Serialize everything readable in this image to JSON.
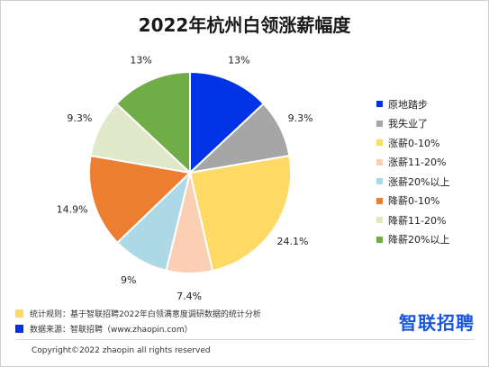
{
  "chart_data": {
    "type": "pie",
    "title": "2022年杭州白领涨薪幅度",
    "categories": [
      "原地踏步",
      "我失业了",
      "涨薪0-10%",
      "涨薪11-20%",
      "涨薪20%以上",
      "降薪0-10%",
      "降薪11-20%",
      "降薪20%以上"
    ],
    "values": [
      13,
      9.3,
      24.1,
      7.4,
      9,
      14.9,
      9.3,
      13
    ],
    "value_labels": [
      "13%",
      "9.3%",
      "24.1%",
      "7.4%",
      "9%",
      "14.9%",
      "9.3%",
      "13%"
    ],
    "colors": [
      "#0033e6",
      "#a6a6a6",
      "#ffd966",
      "#fbcfb4",
      "#add8e6",
      "#ed7d31",
      "#dfe8c8",
      "#70ad47"
    ],
    "legend_position": "right"
  },
  "notes": {
    "rule_label": "统计规则：",
    "rule_text": "基于智联招聘2022年白领满意度调研数据的统计分析",
    "rule_color": "#ffd966",
    "source_label": "数据来源：",
    "source_text": "智联招聘（www.zhaopin.com）",
    "source_color": "#0033e6"
  },
  "brand": {
    "logo_text": "智联招聘",
    "color": "#1a56db"
  },
  "copyright": "Copyright©2022 zhaopin all rights reserved"
}
